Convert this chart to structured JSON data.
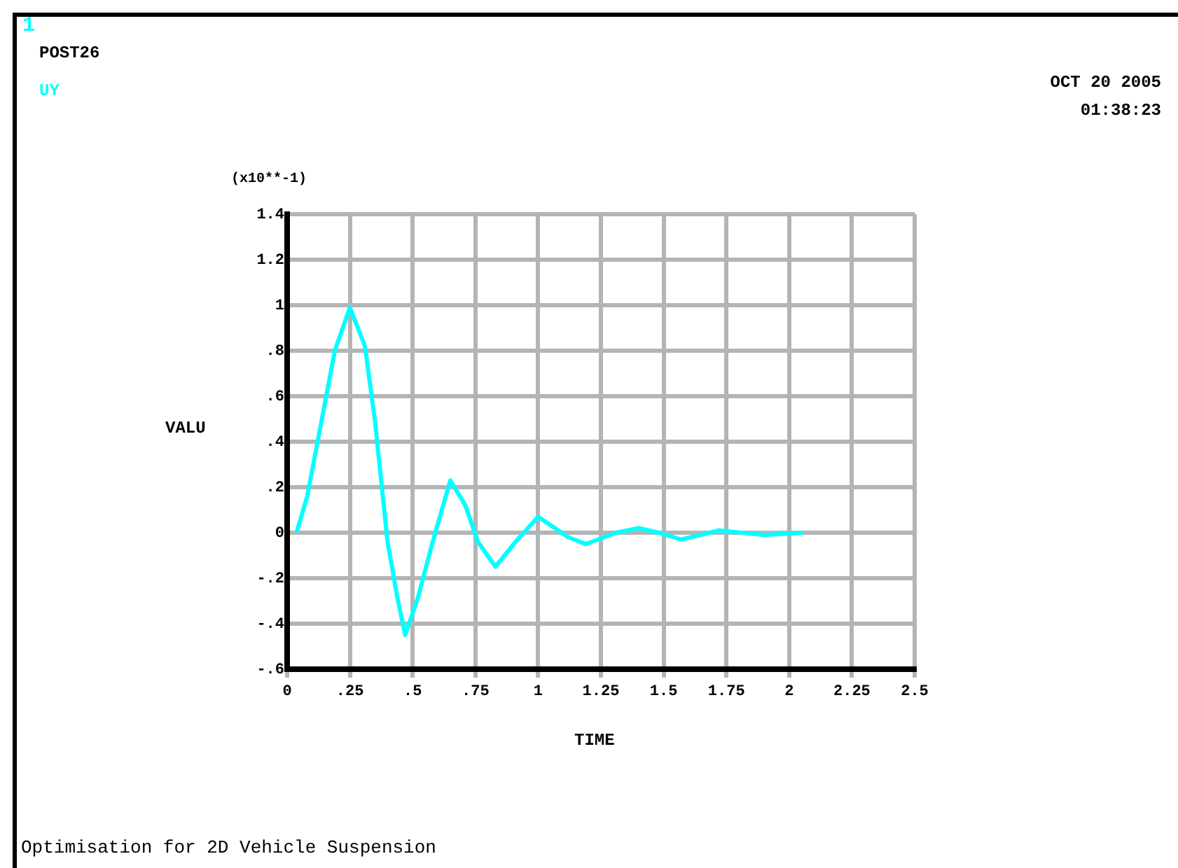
{
  "chart_data": {
    "type": "line",
    "xlabel": "TIME",
    "ylabel": "VALU",
    "annotations": [
      "1",
      "POST26",
      "OCT 20 2005",
      "01:38:23",
      "(x10**-1)",
      "Optimisation for 2D Vehicle Suspension"
    ],
    "legend": "top left",
    "grid": true,
    "marker": "none",
    "line_style": "solid",
    "xlim": [
      0,
      2.5
    ],
    "xticks": [
      0,
      {
        "value": 0.25,
        "label": ".25"
      },
      {
        "value": 0.5,
        "label": ".5"
      },
      {
        "value": 0.75,
        "label": ".75"
      },
      1,
      1.25,
      1.5,
      1.75,
      2,
      2.25,
      2.5
    ],
    "ylim": [
      -0.6,
      1.4
    ],
    "yticks": [
      {
        "value": -0.6,
        "label": "-.6"
      },
      {
        "value": -0.4,
        "label": "-.4"
      },
      {
        "value": -0.2,
        "label": "-.2"
      },
      0,
      {
        "value": 0.2,
        "label": ".2"
      },
      {
        "value": 0.4,
        "label": ".4"
      },
      {
        "value": 0.6,
        "label": ".6"
      },
      {
        "value": 0.8,
        "label": ".8"
      },
      1,
      1.2,
      1.4
    ],
    "series": [
      {
        "name": "UY",
        "color": "#00ffff",
        "x": [
          0.04,
          0.08,
          0.13,
          0.19,
          0.25,
          0.31,
          0.35,
          0.4,
          0.44,
          0.47,
          0.52,
          0.58,
          0.65,
          0.71,
          0.76,
          0.83,
          0.91,
          1.0,
          1.12,
          1.19,
          1.31,
          1.4,
          1.48,
          1.57,
          1.72,
          1.9,
          2.05
        ],
        "values": [
          0.01,
          0.16,
          0.45,
          0.8,
          0.99,
          0.82,
          0.49,
          -0.04,
          -0.29,
          -0.45,
          -0.29,
          -0.04,
          0.23,
          0.12,
          -0.04,
          -0.15,
          -0.04,
          0.07,
          -0.02,
          -0.05,
          0,
          0.02,
          0,
          -0.03,
          0.01,
          -0.01,
          0
        ]
      }
    ]
  }
}
